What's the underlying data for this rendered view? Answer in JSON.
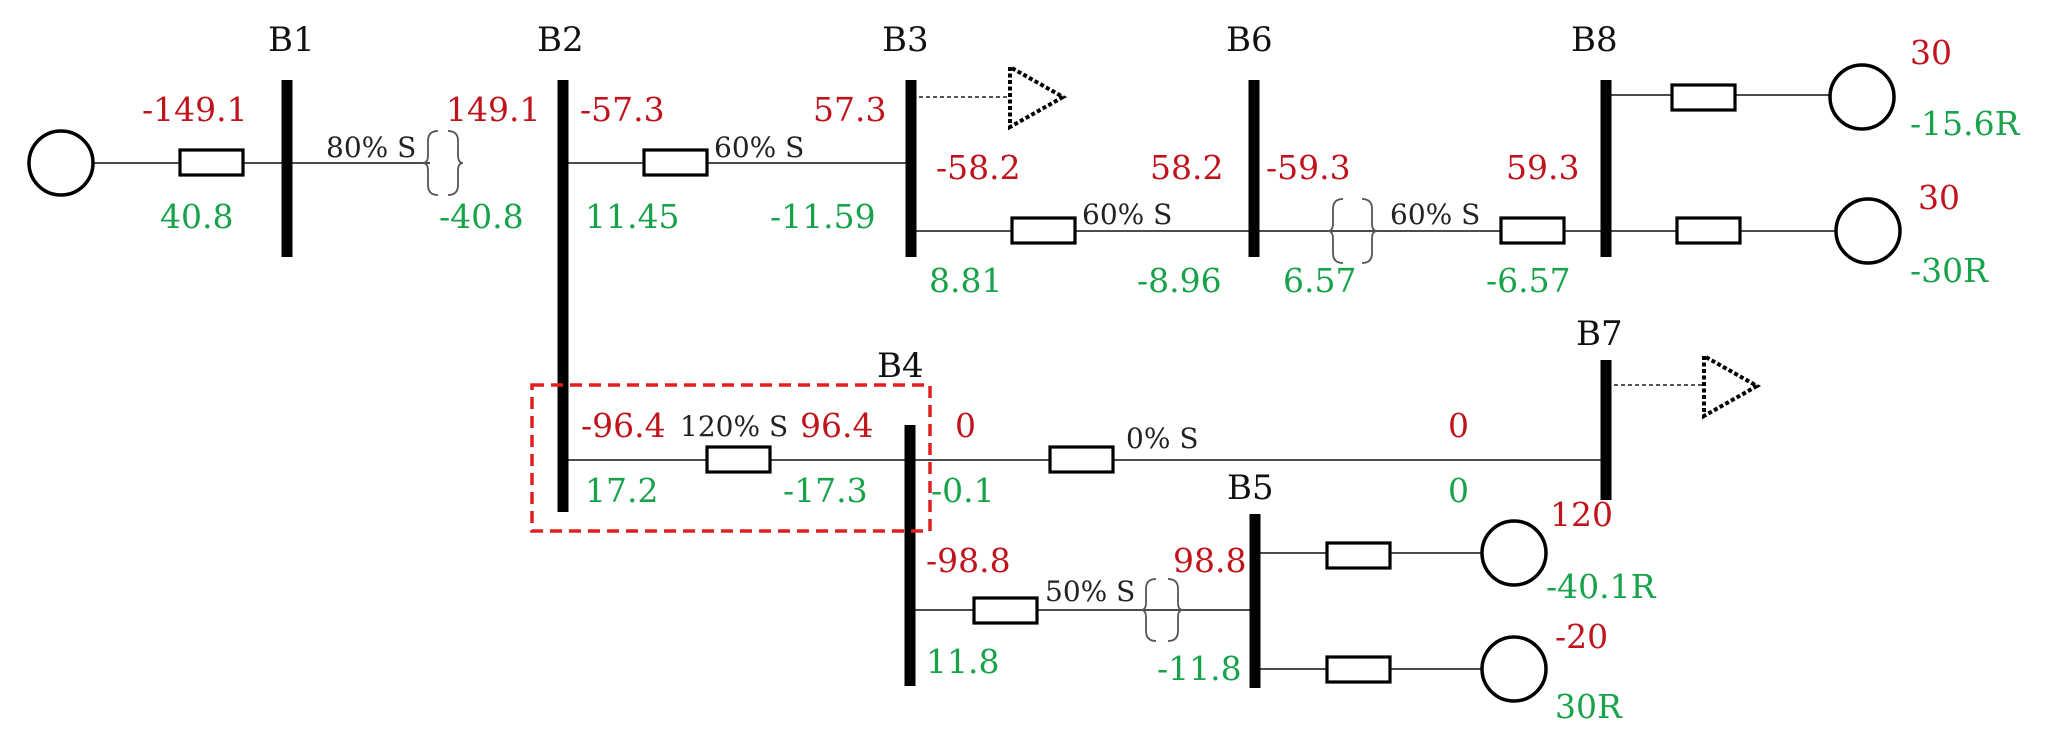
{
  "buses": {
    "b1": "B1",
    "b2": "B2",
    "b3": "B3",
    "b4": "B4",
    "b5": "B5",
    "b6": "B6",
    "b7": "B7",
    "b8": "B8"
  },
  "flows": {
    "gen_b1_p": "-149.1",
    "gen_b1_q": "40.8",
    "b2_from_b1_p": "149.1",
    "b2_from_b1_q": "-40.8",
    "b2_to_b3_p": "-57.3",
    "b2_to_b3_q": "11.45",
    "b3_from_b2_p": "57.3",
    "b3_from_b2_q": "-11.59",
    "b3_to_b6_p": "-58.2",
    "b3_to_b6_q": "8.81",
    "b6_from_b3_p": "58.2",
    "b6_from_b3_q": "-8.96",
    "b6_to_b8_p": "-59.3",
    "b6_to_b8_q": "6.57",
    "b8_from_b6_p": "59.3",
    "b8_from_b6_q": "-6.57",
    "b2_to_b4_p": "-96.4",
    "b2_to_b4_q": "17.2",
    "b4_from_b2_p": "96.4",
    "b4_from_b2_q": "-17.3",
    "b4_to_b7_p": "0",
    "b4_to_b7_q": "-0.1",
    "b7_from_b4_p": "0",
    "b7_from_b4_q": "0",
    "b4_to_b5_p": "-98.8",
    "b4_to_b5_q": "11.8",
    "b5_from_b4_p": "98.8",
    "b5_from_b4_q": "-11.8"
  },
  "loadings": {
    "b1_b2": "80% S",
    "b2_b3": "60% S",
    "b3_b6": "60% S",
    "b6_b8": "60% S",
    "b2_b4": "120% S",
    "b4_b7": "0% S",
    "b4_b5": "50% S"
  },
  "generators": {
    "b8_top": {
      "p": "30",
      "q": "-15.6R"
    },
    "b8_bottom": {
      "p": "30",
      "q": "-30R"
    },
    "b5_top": {
      "p": "120",
      "q": "-40.1R"
    },
    "b5_bottom": {
      "p": "-20",
      "q": "30R"
    }
  },
  "colors": {
    "active_power": "#c0141c",
    "reactive_power": "#18a34a",
    "overload_highlight": "#e02020"
  }
}
